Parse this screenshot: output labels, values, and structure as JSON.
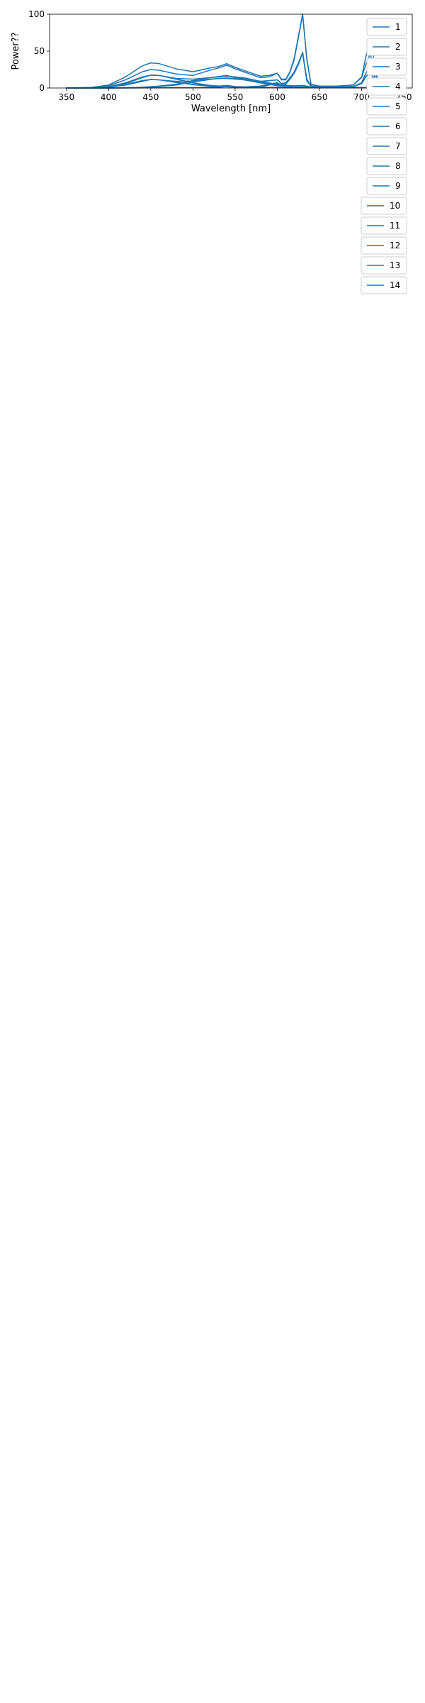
{
  "colors": {
    "line": "#1f77b4",
    "axes": "#000000",
    "legend_border": "#cccccc",
    "background": "#ffffff"
  },
  "chart_data": [
    {
      "type": "line",
      "xlabel": "Wavelength [nm]",
      "ylabel": "Power??",
      "xlim": [
        330,
        760
      ],
      "ylim": [
        0,
        100
      ],
      "xticks": [
        350,
        400,
        450,
        500,
        550,
        600,
        650,
        700,
        750
      ],
      "yticks": [
        0,
        50,
        100
      ],
      "grid": false,
      "legend_position": "top-right",
      "series": [
        {
          "name": "1",
          "x": [
            350,
            400,
            450,
            500,
            520,
            530,
            540,
            550,
            560,
            570,
            580,
            590,
            600,
            605,
            610,
            615,
            620,
            625,
            630,
            635,
            640,
            650,
            670,
            690,
            700,
            705,
            710,
            715,
            720,
            740
          ],
          "y": [
            0,
            0,
            0.3,
            0.5,
            0.8,
            0.5,
            2,
            0.5,
            0.5,
            1,
            1.5,
            4,
            6,
            3,
            5,
            12,
            20,
            32,
            48,
            10,
            2,
            1,
            1,
            1.5,
            6,
            15,
            22,
            12,
            1,
            0.5
          ]
        },
        {
          "name": "2",
          "x": [
            350,
            400,
            420,
            440,
            460,
            480,
            500,
            520,
            540,
            560,
            580,
            600,
            620,
            640,
            660,
            700,
            740
          ],
          "y": [
            0,
            0.1,
            0.3,
            1,
            2.5,
            5,
            10,
            14,
            16,
            14,
            9,
            5,
            2.5,
            1,
            0.5,
            0.3,
            0.1
          ]
        },
        {
          "name": "3",
          "x": [
            350,
            400,
            420,
            440,
            460,
            480,
            500,
            520,
            540,
            550,
            560,
            570,
            580,
            590,
            600,
            605,
            610,
            615,
            620,
            625,
            630,
            635,
            640,
            650,
            670,
            690,
            700,
            705,
            710,
            715,
            720,
            740
          ],
          "y": [
            0,
            0.1,
            0.3,
            1,
            2.5,
            5,
            10,
            14,
            17,
            14,
            13,
            11,
            9,
            10,
            11,
            6,
            7,
            14,
            21,
            33,
            48,
            11,
            3,
            1.5,
            1.3,
            2,
            6,
            15,
            22,
            12,
            1.5,
            0.5
          ]
        },
        {
          "name": "4",
          "x": [
            350,
            380,
            400,
            420,
            440,
            450,
            460,
            480,
            500,
            520,
            550,
            600,
            650,
            700,
            740
          ],
          "y": [
            0,
            0.3,
            1.5,
            6,
            14,
            17.5,
            17,
            12,
            7,
            3.5,
            1.5,
            0.8,
            0.5,
            0.3,
            0.2
          ]
        },
        {
          "name": "5",
          "x": [
            350,
            380,
            400,
            420,
            440,
            450,
            460,
            480,
            500,
            520,
            530,
            540,
            550,
            560,
            570,
            580,
            590,
            600,
            605,
            610,
            615,
            620,
            625,
            630,
            635,
            640,
            650,
            670,
            690,
            700,
            705,
            710,
            715,
            720,
            740
          ],
          "y": [
            0,
            0.3,
            1.5,
            6,
            14,
            17.5,
            17,
            12,
            7,
            3.5,
            2.5,
            3.5,
            2,
            1.5,
            2,
            2.5,
            5,
            7,
            3.5,
            5.5,
            12,
            20,
            32,
            48,
            10,
            2.5,
            1.2,
            1.2,
            1.8,
            6,
            15,
            22,
            12,
            1.2,
            0.5
          ]
        },
        {
          "name": "6",
          "x": [
            350,
            380,
            400,
            420,
            440,
            450,
            460,
            480,
            500,
            520,
            540,
            550,
            560,
            580,
            600,
            620,
            630,
            640,
            660,
            700,
            710,
            740
          ],
          "y": [
            0,
            0.4,
            1.8,
            7,
            15,
            17.5,
            17,
            13,
            12,
            14,
            16,
            15,
            13,
            8,
            4,
            3,
            3.5,
            1.5,
            0.8,
            0.6,
            1,
            0.4
          ]
        },
        {
          "name": "7",
          "x": [
            350,
            380,
            400,
            420,
            440,
            450,
            460,
            480,
            500,
            520,
            530,
            540,
            550,
            560,
            570,
            580,
            590,
            600,
            605,
            610,
            615,
            620,
            625,
            630,
            635,
            640,
            650,
            670,
            690,
            700,
            705,
            710,
            715,
            720,
            740
          ],
          "y": [
            0,
            0.8,
            4,
            15,
            30,
            34,
            33,
            26,
            22,
            27,
            29,
            33,
            28,
            24,
            20,
            16,
            17,
            20,
            12,
            12,
            22,
            40,
            70,
            100,
            40,
            5,
            2.5,
            2.5,
            4,
            14,
            32,
            46,
            28,
            3,
            1
          ]
        },
        {
          "name": "8",
          "x": [
            350,
            400,
            450,
            500,
            520,
            530,
            540,
            550,
            560,
            570,
            580,
            590,
            600,
            605,
            610,
            615,
            620,
            625,
            630,
            635,
            640,
            650,
            670,
            690,
            700,
            705,
            710,
            715,
            720,
            740
          ],
          "y": [
            0,
            0,
            0.3,
            0.5,
            1,
            0.8,
            3,
            1,
            1,
            1.5,
            2,
            5,
            7,
            4,
            6,
            13,
            22,
            34,
            48,
            12,
            3,
            1,
            1,
            2,
            7,
            20,
            31,
            17,
            2,
            0.5
          ]
        },
        {
          "name": "9",
          "x": [
            350,
            400,
            420,
            440,
            460,
            480,
            500,
            520,
            530,
            540,
            560,
            580,
            600,
            620,
            640,
            660,
            700,
            740
          ],
          "y": [
            0,
            0.1,
            0.3,
            0.8,
            2,
            4,
            8,
            11.5,
            13,
            13,
            11,
            7,
            3,
            1.5,
            0.8,
            0.5,
            0.3,
            0.1
          ]
        },
        {
          "name": "10",
          "x": [
            350,
            400,
            420,
            440,
            460,
            480,
            500,
            520,
            540,
            550,
            560,
            570,
            580,
            590,
            600,
            605,
            610,
            615,
            620,
            625,
            630,
            635,
            640,
            650,
            670,
            690,
            700,
            705,
            710,
            715,
            720,
            740
          ],
          "y": [
            0,
            0.1,
            0.3,
            1,
            2.5,
            5,
            10,
            14,
            17,
            14,
            13,
            11,
            9,
            10,
            11,
            6,
            7,
            14,
            21,
            33,
            48,
            11,
            3,
            1.5,
            1.3,
            2,
            7,
            20,
            31,
            17,
            2,
            0.5
          ]
        },
        {
          "name": "11",
          "x": [
            350,
            380,
            400,
            420,
            440,
            450,
            460,
            480,
            500,
            520,
            550,
            600,
            650,
            700,
            740
          ],
          "y": [
            0,
            0.2,
            1,
            4,
            9,
            11.5,
            11,
            7.5,
            4.5,
            2.5,
            1,
            0.5,
            0.3,
            0.2,
            0.1
          ]
        },
        {
          "name": "12",
          "x": [
            350,
            380,
            400,
            420,
            440,
            450,
            460,
            480,
            500,
            520,
            530,
            540,
            550,
            560,
            570,
            580,
            590,
            600,
            605,
            610,
            615,
            620,
            625,
            630,
            635,
            640,
            650,
            670,
            690,
            700,
            705,
            710,
            715,
            720,
            740
          ],
          "y": [
            0,
            0.3,
            1.5,
            5,
            10,
            11.5,
            11,
            8,
            5,
            2.5,
            2,
            3,
            1.5,
            1.5,
            2,
            2.5,
            5,
            7,
            3.5,
            5.5,
            12,
            20,
            32,
            48,
            10,
            2.5,
            1.2,
            1.2,
            2,
            7,
            20,
            31,
            17,
            2,
            0.5
          ]
        },
        {
          "name": "13",
          "x": [
            350,
            380,
            400,
            420,
            440,
            450,
            460,
            480,
            500,
            520,
            540,
            550,
            560,
            580,
            600,
            620,
            640,
            660,
            700,
            740
          ],
          "y": [
            0,
            0.3,
            1.5,
            5,
            10,
            11.5,
            11,
            9,
            9.5,
            12,
            13.5,
            13,
            11.5,
            7,
            3.5,
            2,
            1,
            0.8,
            0.5,
            0.3
          ]
        },
        {
          "name": "14",
          "x": [
            350,
            380,
            400,
            420,
            440,
            450,
            460,
            480,
            500,
            520,
            530,
            540,
            550,
            560,
            570,
            580,
            590,
            600,
            605,
            610,
            615,
            620,
            625,
            630,
            635,
            640,
            650,
            670,
            690,
            700,
            705,
            710,
            715,
            720,
            740
          ],
          "y": [
            0,
            0.6,
            3,
            11,
            22,
            25,
            24,
            19,
            17,
            24,
            27,
            31,
            26,
            22,
            18,
            14,
            15,
            20,
            11,
            11,
            21,
            38,
            68,
            100,
            38,
            5,
            2.5,
            2.5,
            4,
            15,
            42,
            64,
            36,
            3,
            1
          ]
        }
      ]
    }
  ]
}
